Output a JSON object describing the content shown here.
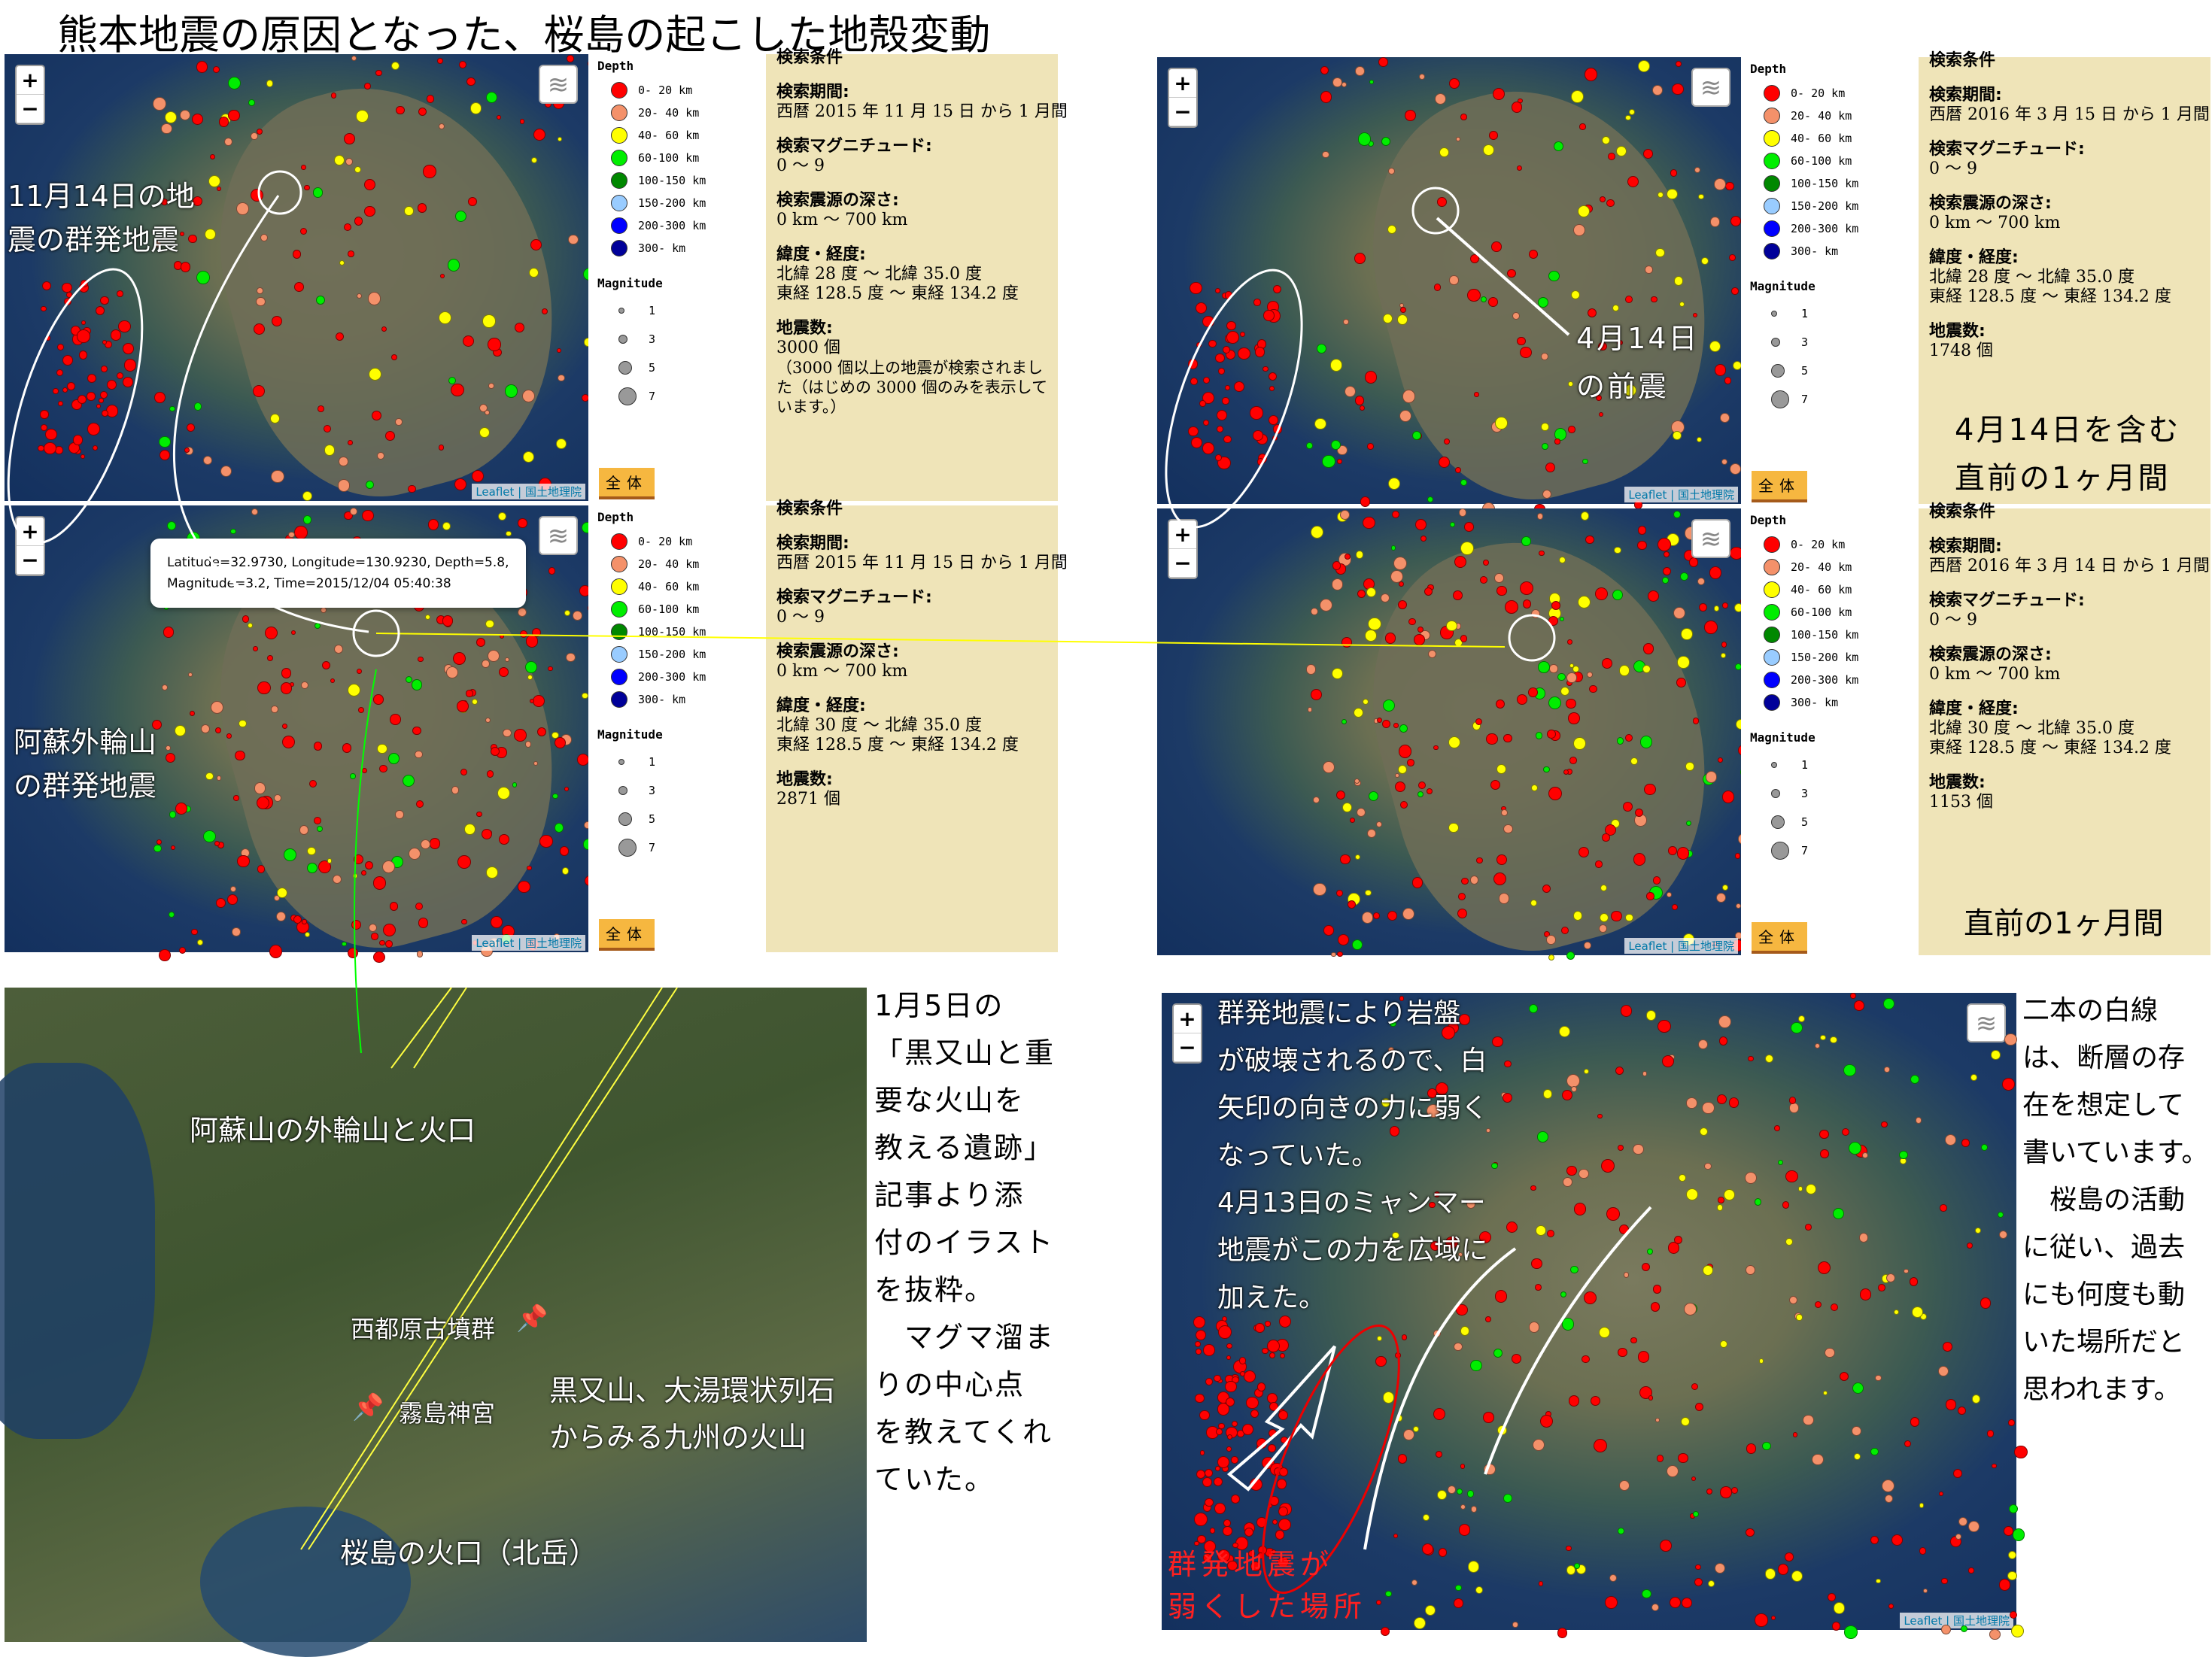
{
  "title": "熊本地震の原因となった、桜島の起こした地殻変動",
  "legend": {
    "depth_title": "Depth",
    "depth": [
      {
        "label": "0- 20 km",
        "color": "#ff0000"
      },
      {
        "label": "20- 40 km",
        "color": "#f4916a"
      },
      {
        "label": "40- 60 km",
        "color": "#ffff00"
      },
      {
        "label": "60-100 km",
        "color": "#00ee00"
      },
      {
        "label": "100-150 km",
        "color": "#008800"
      },
      {
        "label": "150-200 km",
        "color": "#99ccff"
      },
      {
        "label": "200-300 km",
        "color": "#0000ff"
      },
      {
        "label": "300- km",
        "color": "#000099"
      }
    ],
    "mag_title": "Magnitude",
    "mag": [
      "1",
      "3",
      "5",
      "7"
    ],
    "all_button": "全体"
  },
  "attribution": "Leaflet | 国土地理院",
  "zoom": {
    "in": "+",
    "out": "−"
  },
  "panels": [
    {
      "heading": "検索条件",
      "period_label": "検索期間:",
      "period": "西暦 2015 年 11 月 15 日 から 1 月間",
      "mag_label": "検索マグニチュード:",
      "mag": "0 〜 9",
      "depth_label": "検索震源の深さ:",
      "depth": "0 km 〜 700 km",
      "latlon_label": "緯度・経度:",
      "lat": "北緯 28 度 〜 北緯 35.0 度",
      "lon": "東経 128.5 度 〜 東経 134.2 度",
      "count_label": "地震数:",
      "count": "3000 個",
      "note": "（3000 個以上の地震が検索されました（はじめの 3000 個のみを表示しています。）"
    },
    {
      "heading": "検索条件",
      "period_label": "検索期間:",
      "period": "西暦 2015 年 11 月 15 日 から 1 月間",
      "mag_label": "検索マグニチュード:",
      "mag": "0 〜 9",
      "depth_label": "検索震源の深さ:",
      "depth": "0 km 〜 700 km",
      "latlon_label": "緯度・経度:",
      "lat": "北緯 30 度 〜 北緯 35.0 度",
      "lon": "東経 128.5 度 〜 東経 134.2 度",
      "count_label": "地震数:",
      "count": "2871 個"
    },
    {
      "heading": "検索条件",
      "period_label": "検索期間:",
      "period": "西暦 2016 年 3 月 15 日 から 1 月間",
      "mag_label": "検索マグニチュード:",
      "mag": "0 〜 9",
      "depth_label": "検索震源の深さ:",
      "depth": "0 km 〜 700 km",
      "latlon_label": "緯度・経度:",
      "lat": "北緯 28 度 〜 北緯 35.0 度",
      "lon": "東経 128.5 度 〜 東経 134.2 度",
      "count_label": "地震数:",
      "count": "1748 個"
    },
    {
      "heading": "検索条件",
      "period_label": "検索期間:",
      "period": "西暦 2016 年 3 月 14 日 から 1 月間",
      "mag_label": "検索マグニチュード:",
      "mag": "0 〜 9",
      "depth_label": "検索震源の深さ:",
      "depth": "0 km 〜 700 km",
      "latlon_label": "緯度・経度:",
      "lat": "北緯 30 度 〜 北緯 35.0 度",
      "lon": "東経 128.5 度 〜 東経 134.2 度",
      "count_label": "地震数:",
      "count": "1153 個"
    }
  ],
  "annotations": {
    "nov14": [
      "11月14日の地",
      "震の群発地震"
    ],
    "aso": [
      "阿蘇外輪山",
      "の群発地震"
    ],
    "apr14": [
      "4月14日",
      "の前震"
    ],
    "tr_period": [
      "4月14日を含む",
      "直前の1ヶ月間"
    ],
    "mr_period": "直前の1ヶ月間",
    "popup": [
      "Latitude=32.9730, Longitude=130.9230, Depth=5.8,",
      "Magnitude=3.2, Time=2015/12/04 05:40:38"
    ]
  },
  "illustration": {
    "labels": {
      "aso": "阿蘇山の外輪山と火口",
      "saitobaru": "西都原古墳群",
      "kirishima": "霧島神宮",
      "kuromata": [
        "黒又山、大湯環状列石",
        "からみる九州の火山"
      ],
      "sakurajima": "桜島の火口（北岳）"
    },
    "column": [
      "1月5日の",
      "「黒又山と重",
      "要な火山を",
      "教える遺跡」",
      "記事より添",
      "付のイラスト",
      "を抜粋。",
      "　マグマ溜ま",
      "りの中心点",
      "を教えてくれ",
      "ていた。"
    ]
  },
  "analysis": {
    "overlay": [
      "群発地震により岩盤",
      "が破壊されるので、白",
      "矢印の向きの力に弱く",
      "なっていた。",
      "4月13日のミャンマー",
      "地震がこの力を広域に",
      "加えた。"
    ],
    "red_label": [
      "群発地震が",
      "弱くした場所"
    ],
    "column": [
      "二本の白線",
      "は、断層の存",
      "在を想定して",
      "書いています。",
      "　桜島の活動",
      "に従い、過去",
      "にも何度も動",
      "いた場所だと",
      "思われます。"
    ]
  }
}
